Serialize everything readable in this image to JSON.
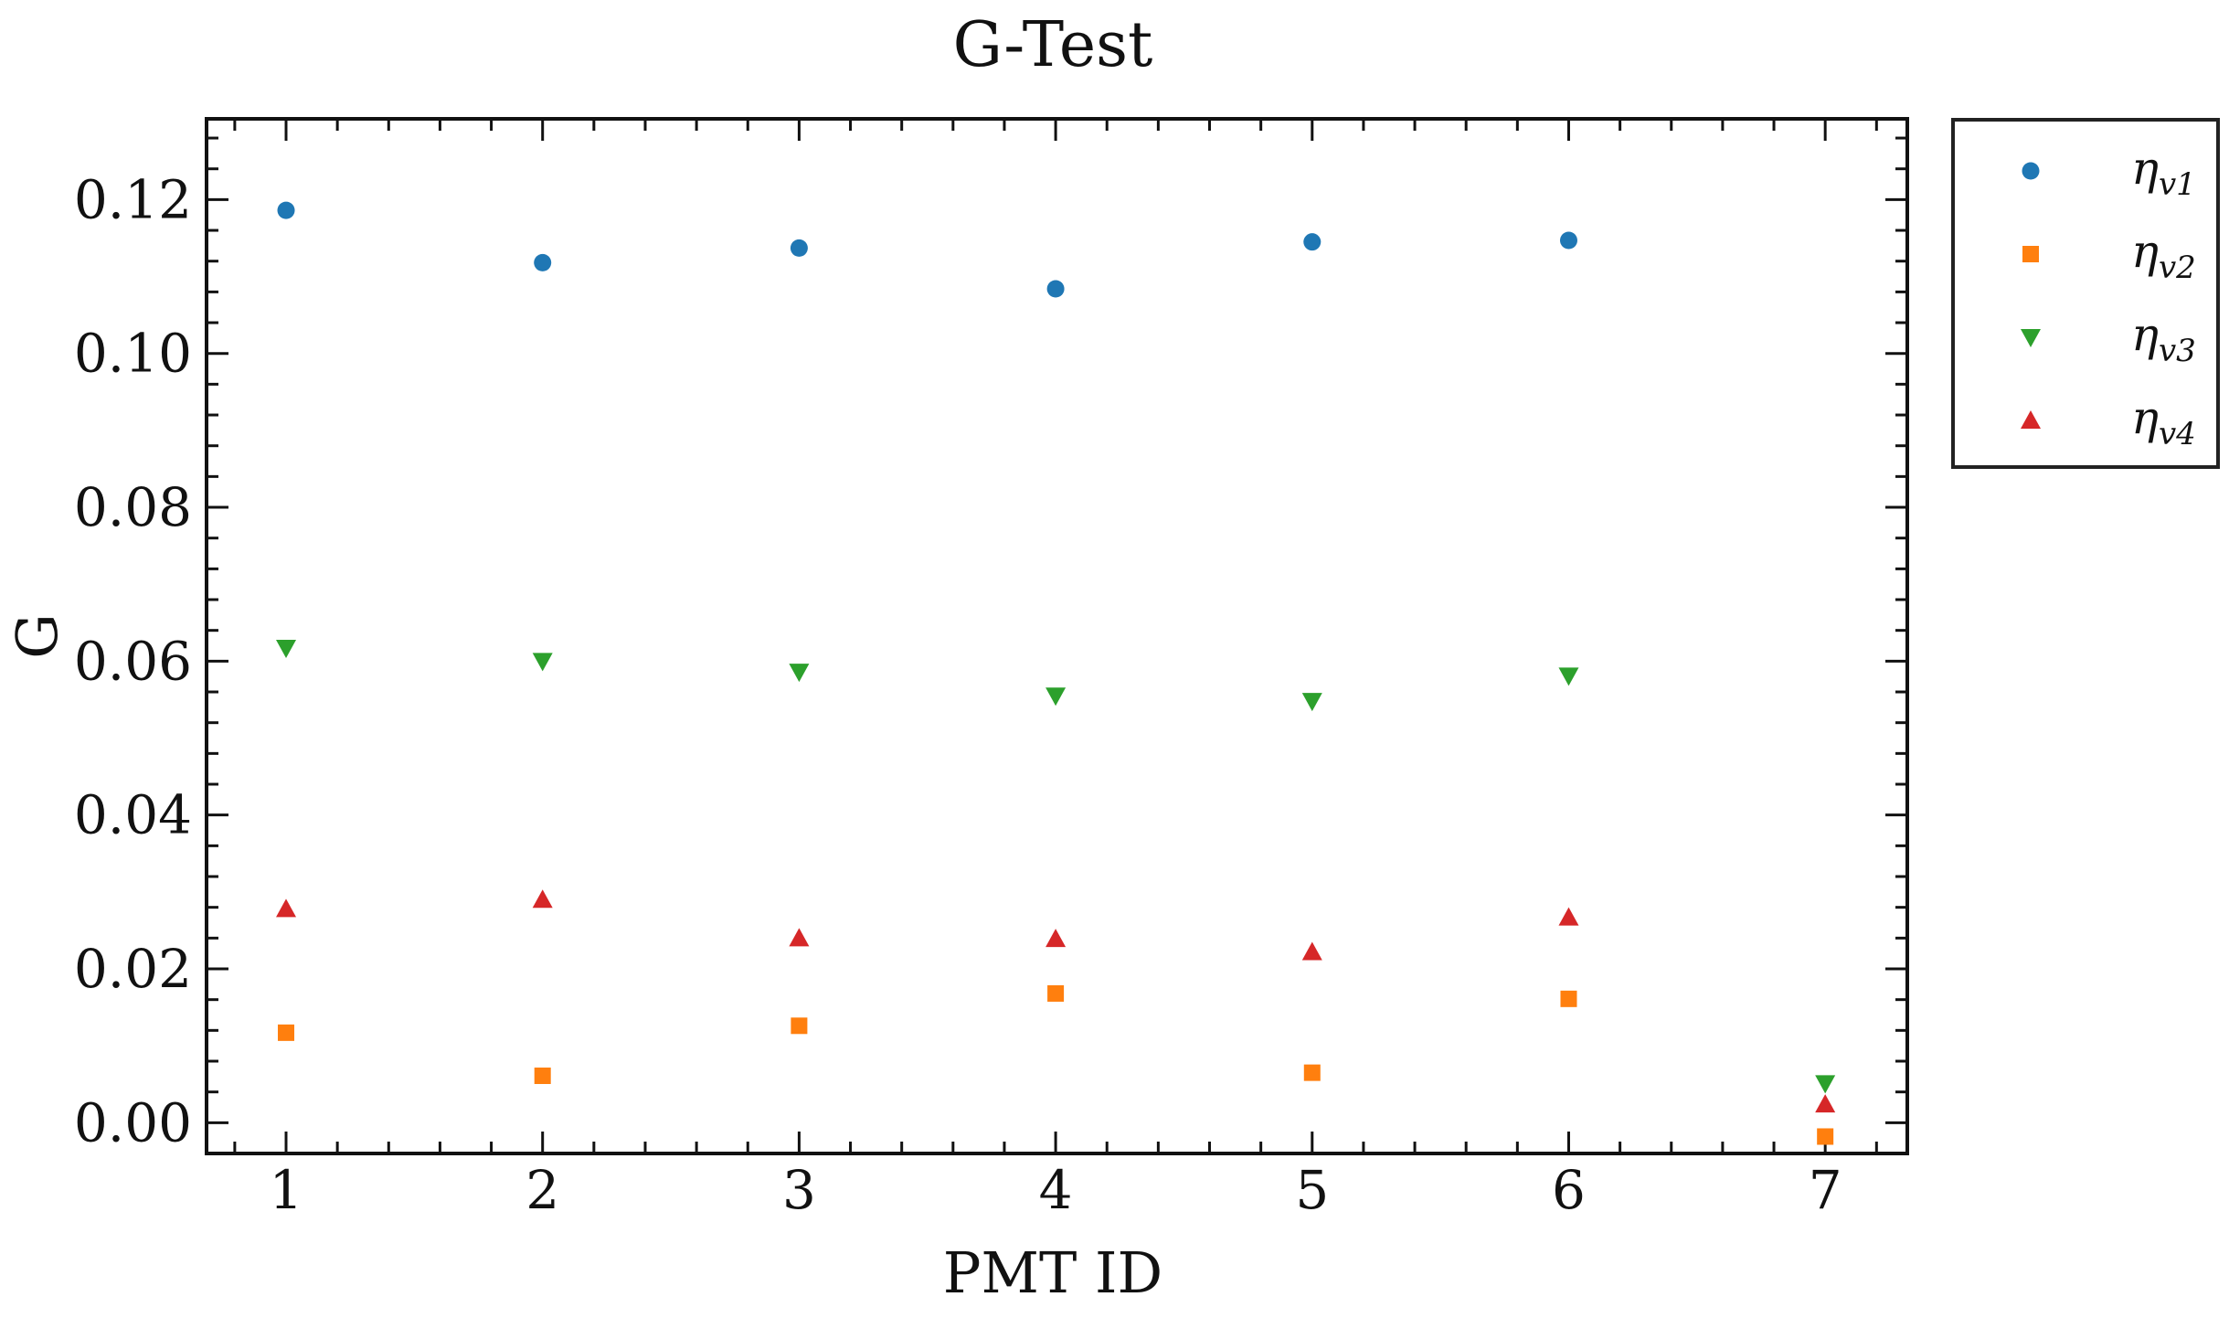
{
  "chart_data": {
    "type": "scatter",
    "title": "G-Test",
    "xlabel": "PMT ID",
    "ylabel": "G",
    "x": [
      1,
      2,
      3,
      4,
      5,
      6,
      7
    ],
    "xlim": [
      0.69,
      7.32
    ],
    "ylim": [
      -0.004,
      0.1305
    ],
    "xticks": [
      1,
      2,
      3,
      4,
      5,
      6,
      7
    ],
    "xtick_labels": [
      "1",
      "2",
      "3",
      "4",
      "5",
      "6",
      "7"
    ],
    "yticks": [
      0.0,
      0.02,
      0.04,
      0.06,
      0.08,
      0.1,
      0.12
    ],
    "ytick_labels": [
      "0.00",
      "0.02",
      "0.04",
      "0.06",
      "0.08",
      "0.10",
      "0.12"
    ],
    "grid": false,
    "legend_position": "outside-top-right",
    "series": [
      {
        "name": "η",
        "sub": "v1",
        "marker": "circle",
        "color": "#1f77b4",
        "values": [
          0.1186,
          0.1118,
          0.1137,
          0.1084,
          0.1145,
          0.1147,
          null
        ]
      },
      {
        "name": "η",
        "sub": "v2",
        "marker": "square",
        "color": "#ff7f0e",
        "values": [
          0.0117,
          0.0061,
          0.0126,
          0.0168,
          0.0065,
          0.0161,
          -0.0018
        ]
      },
      {
        "name": "η",
        "sub": "v3",
        "marker": "triangle-down",
        "color": "#2ca02c",
        "values": [
          0.0617,
          0.06,
          0.0586,
          0.0555,
          0.0548,
          0.0581,
          0.0051
        ]
      },
      {
        "name": "η",
        "sub": "v4",
        "marker": "triangle-up",
        "color": "#d62728",
        "values": [
          0.0278,
          0.029,
          0.024,
          0.0239,
          0.0222,
          0.0267,
          0.0024
        ]
      }
    ]
  }
}
